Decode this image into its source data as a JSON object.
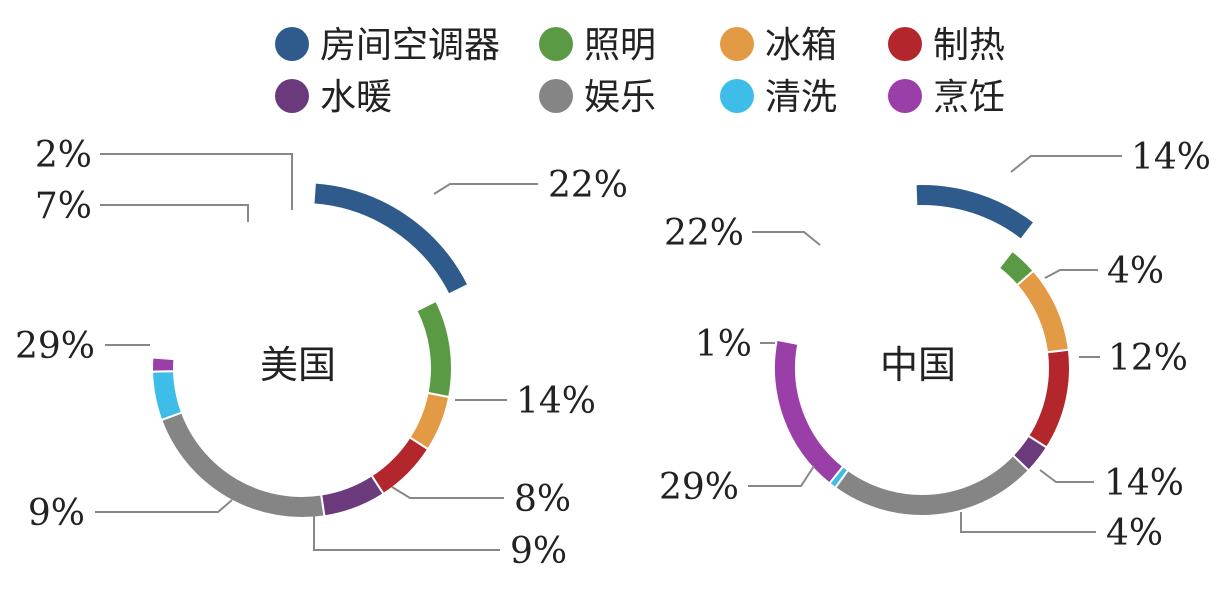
{
  "chart_data": [
    {
      "type": "pie",
      "title": "美国",
      "categories": [
        "房间空调器",
        "照明",
        "冰箱",
        "制热",
        "水暖",
        "娱乐",
        "清洗",
        "烹饪"
      ],
      "values": [
        22,
        14,
        8,
        9,
        9,
        29,
        7,
        2
      ],
      "labels": [
        "22%",
        "14%",
        "8%",
        "9%",
        "9%",
        "29%",
        "7%",
        "2%"
      ]
    },
    {
      "type": "pie",
      "title": "中国",
      "categories": [
        "房间空调器",
        "照明",
        "冰箱",
        "制热",
        "水暖",
        "娱乐",
        "清洗",
        "烹饪"
      ],
      "values": [
        14,
        4,
        12,
        14,
        4,
        29,
        1,
        22
      ],
      "labels": [
        "14%",
        "4%",
        "12%",
        "14%",
        "4%",
        "29%",
        "1%",
        "22%"
      ]
    }
  ],
  "legend": [
    {
      "label": "房间空调器",
      "color": "#2f5b8c"
    },
    {
      "label": "照明",
      "color": "#5b9a45"
    },
    {
      "label": "冰箱",
      "color": "#e39a45"
    },
    {
      "label": "制热",
      "color": "#b3262b"
    },
    {
      "label": "水暖",
      "color": "#6b3a7c"
    },
    {
      "label": "娱乐",
      "color": "#858585"
    },
    {
      "label": "清洗",
      "color": "#3fbde9"
    },
    {
      "label": "烹饪",
      "color": "#9b3fa8"
    }
  ]
}
